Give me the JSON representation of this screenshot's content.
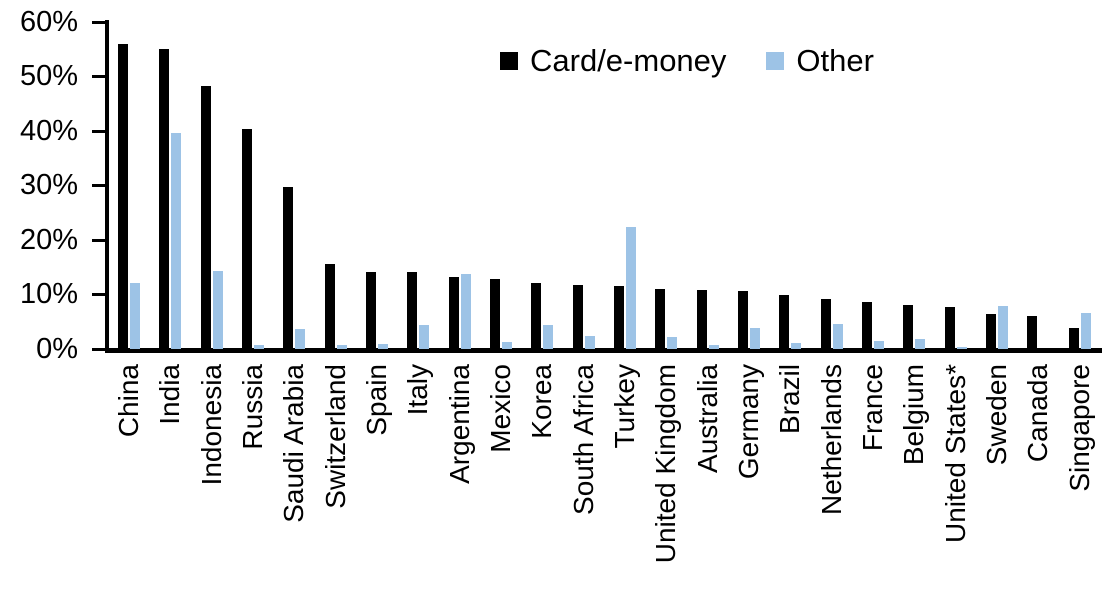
{
  "chart_data": {
    "type": "bar",
    "title": "",
    "xlabel": "",
    "ylabel": "",
    "ylim": [
      0,
      60
    ],
    "yticks": [
      0,
      10,
      20,
      30,
      40,
      50,
      60
    ],
    "ytick_suffix": "%",
    "grid": false,
    "legend_position": "top-center",
    "categories": [
      "China",
      "India",
      "Indonesia",
      "Russia",
      "Saudi Arabia",
      "Switzerland",
      "Spain",
      "Italy",
      "Argentina",
      "Mexico",
      "Korea",
      "South Africa",
      "Turkey",
      "United Kingdom",
      "Australia",
      "Germany",
      "Brazil",
      "Netherlands",
      "France",
      "Belgium",
      "United States*",
      "Sweden",
      "Canada",
      "Singapore"
    ],
    "series": [
      {
        "name": "Card/e-money",
        "color": "#000000",
        "values": [
          56,
          55,
          48.2,
          40.4,
          29.8,
          15.6,
          14.2,
          14.1,
          13.3,
          12.9,
          12.2,
          11.7,
          11.6,
          11,
          10.8,
          10.6,
          9.9,
          9.2,
          8.7,
          8,
          7.8,
          6.4,
          6,
          3.9
        ]
      },
      {
        "name": "Other",
        "color": "#9DC3E6",
        "values": [
          12.2,
          39.7,
          14.4,
          0.8,
          3.6,
          0.7,
          0.9,
          4.4,
          13.7,
          1.3,
          4.4,
          2.3,
          22.4,
          2.2,
          0.8,
          3.8,
          1.1,
          4.6,
          1.4,
          1.9,
          0.3,
          7.9,
          0,
          6.6
        ]
      }
    ]
  }
}
